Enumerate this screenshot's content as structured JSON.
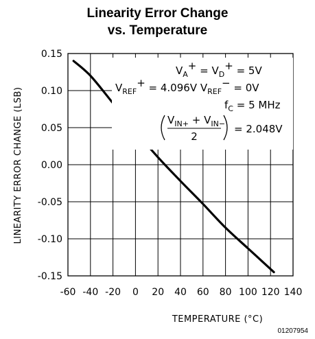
{
  "chart_data": {
    "type": "line",
    "title_line1": "Linearity Error Change",
    "title_line2": "vs. Temperature",
    "xlabel": "TEMPERATURE (°C)",
    "ylabel": "LINEARITY ERROR CHANGE (LSB)",
    "xlim": [
      -60,
      140
    ],
    "ylim": [
      -0.15,
      0.15
    ],
    "xticks": [
      -60,
      -40,
      -20,
      0,
      20,
      40,
      60,
      80,
      100,
      120,
      140
    ],
    "yticks": [
      0.15,
      0.1,
      0.05,
      0.0,
      -0.05,
      -0.1,
      -0.15
    ],
    "ytick_labels": [
      "0.15",
      "0.10",
      "0.05",
      "0.00",
      "-0.05",
      "-0.10",
      "-0.15"
    ],
    "grid": true,
    "series": [
      {
        "x": [
          -55,
          -40,
          -20,
          0,
          20,
          40,
          60,
          80,
          100,
          123
        ],
        "y": [
          0.14,
          0.12,
          0.083,
          0.045,
          0.01,
          -0.022,
          -0.053,
          -0.085,
          -0.113,
          -0.145
        ]
      }
    ],
    "annotations": {
      "line1": "V_A^+ = V_D^+ = 5V",
      "line2": "V_REF^+ = 4.096V  V_REF^- = 0V",
      "line3": "f_C = 5 MHz",
      "line4": "(V_IN+ + V_IN-)/2 = 2.048V"
    },
    "figure_code": "01207954"
  }
}
